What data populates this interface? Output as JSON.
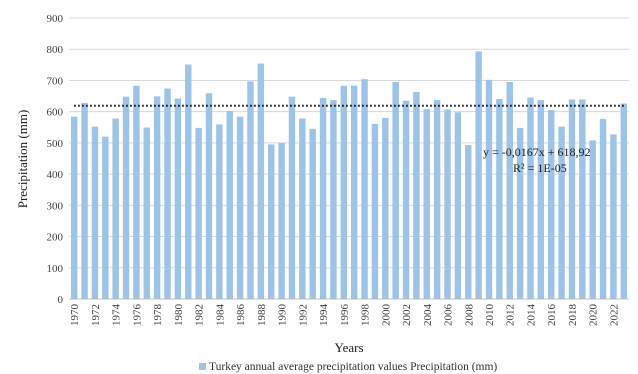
{
  "chart_data": {
    "type": "bar",
    "title": "",
    "xlabel": "Years",
    "ylabel": "Precipitation (mm)",
    "ylim": [
      0,
      900
    ],
    "yticks": [
      0,
      100,
      200,
      300,
      400,
      500,
      600,
      700,
      800,
      900
    ],
    "grid": true,
    "legend_position": "bottom",
    "bar_color": "#9dc3e6",
    "trend_color": "#000000",
    "categories": [
      "1970",
      "1971",
      "1972",
      "1973",
      "1974",
      "1975",
      "1976",
      "1977",
      "1978",
      "1979",
      "1980",
      "1981",
      "1982",
      "1983",
      "1984",
      "1985",
      "1986",
      "1987",
      "1988",
      "1989",
      "1990",
      "1991",
      "1992",
      "1993",
      "1994",
      "1995",
      "1996",
      "1997",
      "1998",
      "1999",
      "2000",
      "2001",
      "2002",
      "2003",
      "2004",
      "2005",
      "2006",
      "2007",
      "2008",
      "2009",
      "2010",
      "2011",
      "2012",
      "2013",
      "2014",
      "2015",
      "2016",
      "2017",
      "2018",
      "2019",
      "2020",
      "2021",
      "2022",
      "2023"
    ],
    "tick_labels": [
      "1970",
      "1972",
      "1974",
      "1976",
      "1978",
      "1980",
      "1982",
      "1984",
      "1986",
      "1988",
      "1990",
      "1992",
      "1994",
      "1996",
      "1998",
      "2000",
      "2002",
      "2004",
      "2006",
      "2008",
      "2010",
      "2012",
      "2014",
      "2016",
      "2018",
      "2020",
      "2022"
    ],
    "series": [
      {
        "name": "Turkey annual average precipitation values Precipitation (mm)",
        "values": [
          584,
          628,
          552,
          520,
          578,
          648,
          683,
          549,
          649,
          674,
          642,
          751,
          548,
          659,
          559,
          602,
          584,
          697,
          754,
          495,
          500,
          648,
          578,
          545,
          644,
          637,
          683,
          683,
          704,
          561,
          580,
          695,
          635,
          663,
          608,
          637,
          607,
          598,
          493,
          793,
          702,
          641,
          695,
          548,
          645,
          637,
          605,
          552,
          639,
          639,
          508,
          577,
          527,
          626
        ]
      }
    ],
    "trendline": {
      "value": 618.92,
      "equation": "y = -0,0167x  + 618,92",
      "r2": "R² = 1E-05"
    }
  }
}
